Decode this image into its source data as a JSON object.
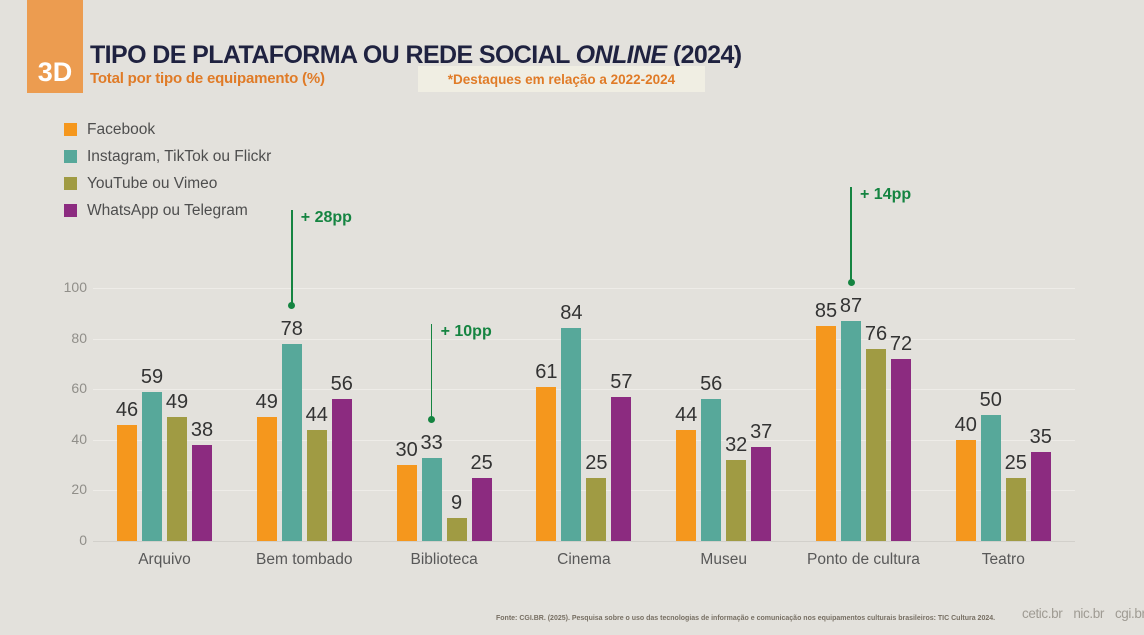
{
  "header": {
    "badge": "3D",
    "title_prefix": "TIPO DE PLATAFORMA OU REDE SOCIAL ",
    "title_italic": "ONLINE",
    "title_suffix": " (2024)",
    "subtitle": "Total por tipo de equipamento (%)",
    "highlight_note": "*Destaques em relação a 2022-2024"
  },
  "chart_data": {
    "type": "bar",
    "title": "TIPO DE PLATAFORMA OU REDE SOCIAL ONLINE (2024)",
    "subtitle": "Total por tipo de equipamento (%)",
    "categories": [
      "Arquivo",
      "Bem tombado",
      "Biblioteca",
      "Cinema",
      "Museu",
      "Ponto de cultura",
      "Teatro"
    ],
    "series": [
      {
        "name": "Facebook",
        "color": "#f5971d",
        "values": [
          46,
          49,
          30,
          61,
          44,
          85,
          40
        ]
      },
      {
        "name": "Instagram, TikTok ou Flickr",
        "color": "#57a89a",
        "values": [
          59,
          78,
          33,
          84,
          56,
          87,
          50
        ]
      },
      {
        "name": "YouTube ou Vimeo",
        "color": "#a09b43",
        "values": [
          49,
          44,
          9,
          25,
          32,
          76,
          25
        ]
      },
      {
        "name": "WhatsApp ou Telegram",
        "color": "#8c2b80",
        "values": [
          38,
          56,
          25,
          57,
          37,
          72,
          35
        ]
      }
    ],
    "ylabel": "",
    "xlabel": "",
    "ylim": [
      0,
      100
    ],
    "yticks": [
      0,
      20,
      40,
      60,
      80,
      100
    ],
    "grid": true,
    "legend_position": "top-left",
    "annotation_color": "#158441",
    "annotations": [
      {
        "category": "Bem tombado",
        "series": "Instagram, TikTok ou Flickr",
        "label": "+ 28pp"
      },
      {
        "category": "Biblioteca",
        "series": "Instagram, TikTok ou Flickr",
        "label": "+ 10pp"
      },
      {
        "category": "Ponto de cultura",
        "series": "Instagram, TikTok ou Flickr",
        "label": "+ 14pp"
      }
    ]
  },
  "footer": {
    "source": "Fonte: CGI.BR. (2025). Pesquisa sobre o uso das tecnologias de informação e comunicação nos equipamentos culturais brasileiros: TIC Cultura 2024.",
    "logos": [
      "cetic.br",
      "nic.br",
      "cgi.br"
    ]
  }
}
